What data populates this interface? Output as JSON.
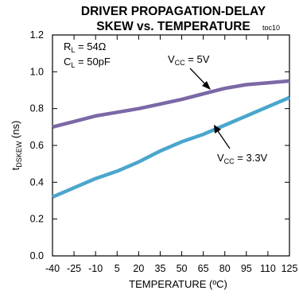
{
  "chart_data": {
    "type": "line",
    "title": "DRIVER PROPAGATION-DELAY",
    "subtitle": "SKEW vs. TEMPERATURE",
    "figure_id": "toc10",
    "xlabel": "TEMPERATURE (ºC)",
    "ylabel": {
      "main": "t",
      "sub": "DSKEW",
      "unit": " (ns)"
    },
    "xlim": [
      -40,
      125
    ],
    "ylim": [
      0,
      1.2
    ],
    "xticks": [
      -40,
      -25,
      -10,
      5,
      20,
      35,
      50,
      65,
      80,
      95,
      110,
      125
    ],
    "yticks": [
      "0.0",
      "0.2",
      "0.4",
      "0.6",
      "0.8",
      "1.0",
      "1.2"
    ],
    "grid": false,
    "conditions": [
      {
        "main": "R",
        "sub": "L",
        "rest": " = 54Ω"
      },
      {
        "main": "C",
        "sub": "L",
        "rest": " = 50pF"
      }
    ],
    "series": [
      {
        "label": {
          "main": "V",
          "sub": "CC",
          "rest": " = 5V"
        },
        "color": "#7b68a6",
        "x": [
          -40,
          -25,
          -10,
          5,
          20,
          35,
          50,
          65,
          80,
          95,
          110,
          125
        ],
        "values": [
          0.7,
          0.73,
          0.76,
          0.78,
          0.8,
          0.825,
          0.85,
          0.88,
          0.91,
          0.93,
          0.94,
          0.95
        ]
      },
      {
        "label": {
          "main": "V",
          "sub": "CC",
          "rest": " = 3.3V"
        },
        "color": "#4aa6cc",
        "x": [
          -40,
          -25,
          -10,
          5,
          20,
          35,
          50,
          65,
          80,
          95,
          110,
          125
        ],
        "values": [
          0.32,
          0.37,
          0.42,
          0.46,
          0.51,
          0.57,
          0.62,
          0.66,
          0.71,
          0.76,
          0.81,
          0.86
        ]
      }
    ]
  }
}
